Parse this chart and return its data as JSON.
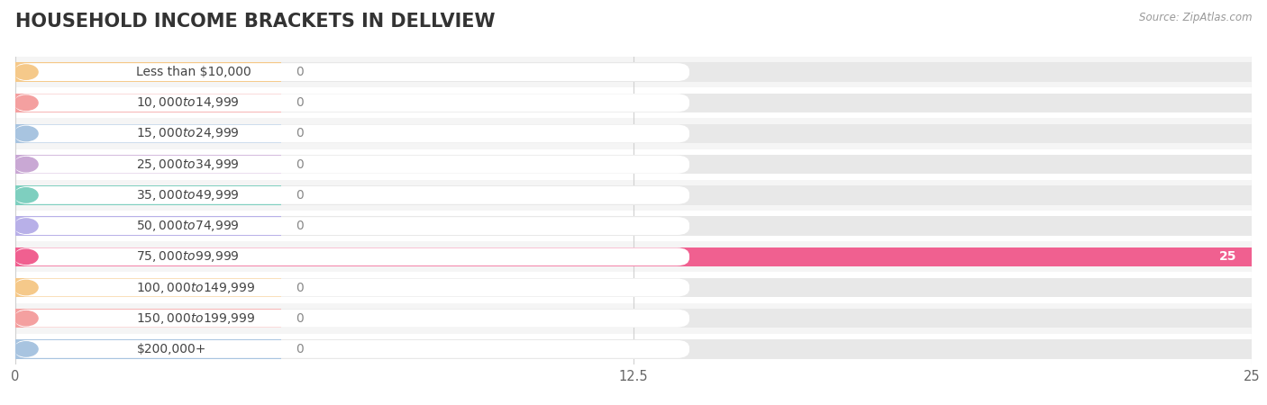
{
  "title": "HOUSEHOLD INCOME BRACKETS IN DELLVIEW",
  "source": "Source: ZipAtlas.com",
  "categories": [
    "Less than $10,000",
    "$10,000 to $14,999",
    "$15,000 to $24,999",
    "$25,000 to $34,999",
    "$35,000 to $49,999",
    "$50,000 to $74,999",
    "$75,000 to $99,999",
    "$100,000 to $149,999",
    "$150,000 to $199,999",
    "$200,000+"
  ],
  "values": [
    0,
    0,
    0,
    0,
    0,
    0,
    25,
    0,
    0,
    0
  ],
  "bar_colors": [
    "#f5c98a",
    "#f4a0a0",
    "#a8c4e0",
    "#c9a8d4",
    "#7ecfbf",
    "#b8b0e8",
    "#f06090",
    "#f5c98a",
    "#f4a0a0",
    "#a8c4e0"
  ],
  "row_bg_colors": [
    "#f5f5f5",
    "#ffffff"
  ],
  "track_color": "#e8e8e8",
  "pill_bg_color": "#ffffff",
  "xlim": [
    0,
    25
  ],
  "xticks": [
    0,
    12.5,
    25
  ],
  "bar_height": 0.62,
  "fig_bg": "#ffffff",
  "title_fontsize": 15,
  "label_fontsize": 10,
  "tick_fontsize": 10.5,
  "grid_color": "#d0d0d0",
  "label_text_color": "#444444",
  "zero_label_color": "#888888",
  "value_white_color": "#ffffff"
}
